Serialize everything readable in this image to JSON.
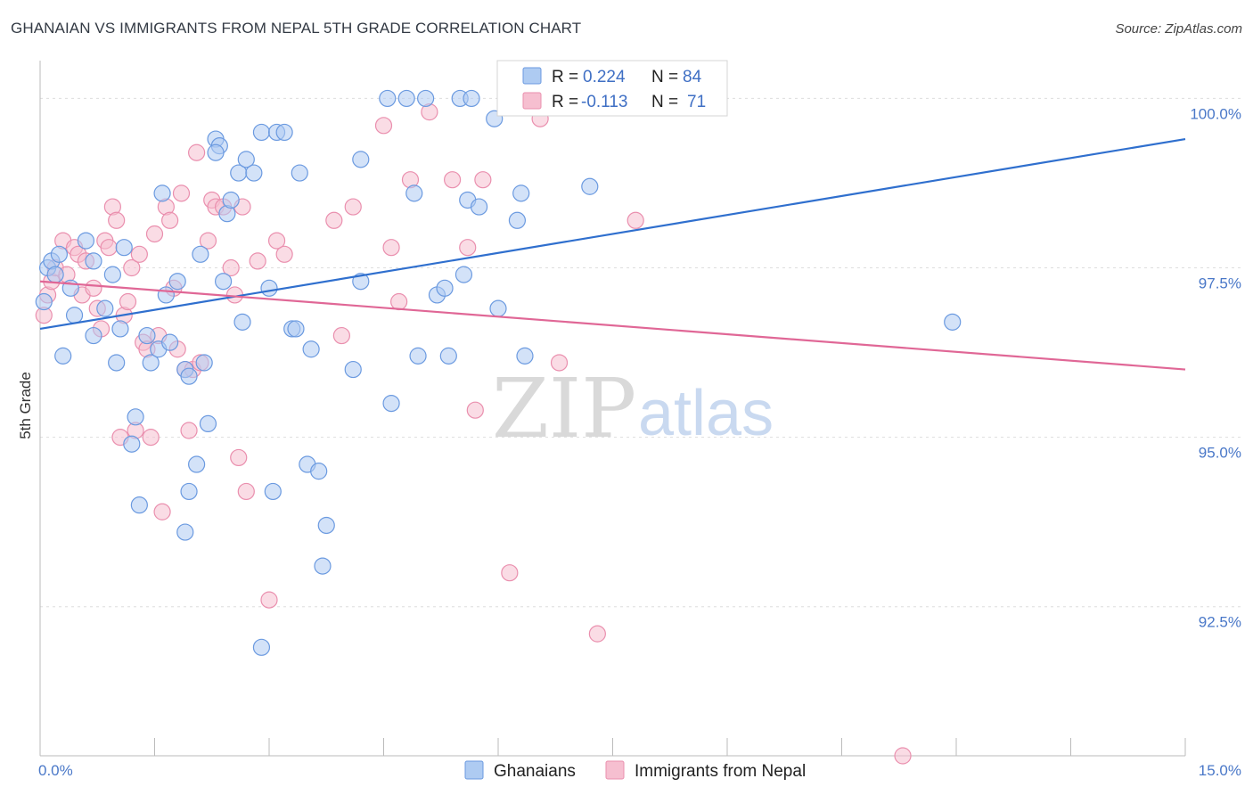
{
  "title": "GHANAIAN VS IMMIGRANTS FROM NEPAL 5TH GRADE CORRELATION CHART",
  "source": "Source: ZipAtlas.com",
  "watermark": {
    "zip": "ZIP",
    "atlas": "atlas"
  },
  "colors": {
    "blue_fill": "#aecbf2",
    "blue_stroke": "#6b9ae0",
    "blue_line": "#2f6fce",
    "pink_fill": "#f6bfd0",
    "pink_stroke": "#ea8fae",
    "pink_line": "#e06796",
    "grid": "#dddddd",
    "tick_text": "#4a78c8"
  },
  "legend": {
    "rows": [
      {
        "r_label": "R =",
        "r_value": "0.224",
        "n_label": "N =",
        "n_value": "84"
      },
      {
        "r_label": "R =",
        "r_value": "-0.113",
        "n_label": "N =",
        "n_value": "71"
      }
    ]
  },
  "chart_data": {
    "type": "scatter",
    "title": "GHANAIAN VS IMMIGRANTS FROM NEPAL 5TH GRADE CORRELATION CHART",
    "xlabel": "",
    "ylabel": "5th Grade",
    "xlim": [
      0,
      15
    ],
    "ylim": [
      90.3,
      100.4
    ],
    "x_tick_labels": [
      "0.0%",
      "15.0%"
    ],
    "y_ticks": [
      92.5,
      95.0,
      97.5,
      100.0
    ],
    "y_tick_labels": [
      "92.5%",
      "95.0%",
      "97.5%",
      "100.0%"
    ],
    "grid": "horizontal dashed",
    "legend_position": "top-center",
    "series": [
      {
        "name": "Ghanaians",
        "trend": [
          [
            0,
            96.6
          ],
          [
            15,
            99.4
          ]
        ],
        "points": [
          [
            0.05,
            97.0
          ],
          [
            0.1,
            97.5
          ],
          [
            0.15,
            97.6
          ],
          [
            0.2,
            97.4
          ],
          [
            0.3,
            96.2
          ],
          [
            0.4,
            97.2
          ],
          [
            0.45,
            96.8
          ],
          [
            0.6,
            97.9
          ],
          [
            0.7,
            97.6
          ],
          [
            0.7,
            96.5
          ],
          [
            0.85,
            96.9
          ],
          [
            0.95,
            97.4
          ],
          [
            1.0,
            96.1
          ],
          [
            1.05,
            96.6
          ],
          [
            1.1,
            97.8
          ],
          [
            1.2,
            94.9
          ],
          [
            1.25,
            95.3
          ],
          [
            1.3,
            94.0
          ],
          [
            1.4,
            96.5
          ],
          [
            1.45,
            96.1
          ],
          [
            1.55,
            96.3
          ],
          [
            1.6,
            98.6
          ],
          [
            1.65,
            97.1
          ],
          [
            1.7,
            96.4
          ],
          [
            1.8,
            97.3
          ],
          [
            1.9,
            96.0
          ],
          [
            1.95,
            95.9
          ],
          [
            1.9,
            93.6
          ],
          [
            1.95,
            94.2
          ],
          [
            2.05,
            94.6
          ],
          [
            2.1,
            97.7
          ],
          [
            2.15,
            96.1
          ],
          [
            2.2,
            95.2
          ],
          [
            2.3,
            99.4
          ],
          [
            2.35,
            99.3
          ],
          [
            2.3,
            99.2
          ],
          [
            2.4,
            97.3
          ],
          [
            2.45,
            98.3
          ],
          [
            2.5,
            98.5
          ],
          [
            2.6,
            98.9
          ],
          [
            2.65,
            96.7
          ],
          [
            2.7,
            99.1
          ],
          [
            2.8,
            98.9
          ],
          [
            2.9,
            91.9
          ],
          [
            2.9,
            99.5
          ],
          [
            3.0,
            97.2
          ],
          [
            3.05,
            94.2
          ],
          [
            3.1,
            99.5
          ],
          [
            3.2,
            99.5
          ],
          [
            3.3,
            96.6
          ],
          [
            3.35,
            96.6
          ],
          [
            3.4,
            98.9
          ],
          [
            3.5,
            94.6
          ],
          [
            3.55,
            96.3
          ],
          [
            3.65,
            94.5
          ],
          [
            3.7,
            93.1
          ],
          [
            3.75,
            93.7
          ],
          [
            4.1,
            96.0
          ],
          [
            4.2,
            97.3
          ],
          [
            4.2,
            99.1
          ],
          [
            4.55,
            100.0
          ],
          [
            4.6,
            95.5
          ],
          [
            4.8,
            100.0
          ],
          [
            4.9,
            98.6
          ],
          [
            4.95,
            96.2
          ],
          [
            5.05,
            100.0
          ],
          [
            5.2,
            97.1
          ],
          [
            5.3,
            97.2
          ],
          [
            5.35,
            96.2
          ],
          [
            5.5,
            100.0
          ],
          [
            5.55,
            97.4
          ],
          [
            5.65,
            100.0
          ],
          [
            5.6,
            98.5
          ],
          [
            5.75,
            98.4
          ],
          [
            5.95,
            99.7
          ],
          [
            6.0,
            96.9
          ],
          [
            6.25,
            98.2
          ],
          [
            6.3,
            98.6
          ],
          [
            6.35,
            96.2
          ],
          [
            7.2,
            98.7
          ],
          [
            8.0,
            100.0
          ],
          [
            8.1,
            100.0
          ],
          [
            11.95,
            96.7
          ],
          [
            0.25,
            97.7
          ]
        ]
      },
      {
        "name": "Immigrants from Nepal",
        "trend": [
          [
            0,
            97.3
          ],
          [
            15,
            96.0
          ]
        ],
        "points": [
          [
            0.05,
            96.8
          ],
          [
            0.1,
            97.1
          ],
          [
            0.15,
            97.3
          ],
          [
            0.2,
            97.5
          ],
          [
            0.3,
            97.9
          ],
          [
            0.35,
            97.4
          ],
          [
            0.45,
            97.8
          ],
          [
            0.5,
            97.7
          ],
          [
            0.55,
            97.1
          ],
          [
            0.6,
            97.6
          ],
          [
            0.7,
            97.2
          ],
          [
            0.75,
            96.9
          ],
          [
            0.8,
            96.6
          ],
          [
            0.85,
            97.9
          ],
          [
            0.9,
            97.8
          ],
          [
            0.95,
            98.4
          ],
          [
            1.0,
            98.2
          ],
          [
            1.05,
            95.0
          ],
          [
            1.1,
            96.8
          ],
          [
            1.15,
            97.0
          ],
          [
            1.2,
            97.5
          ],
          [
            1.25,
            95.1
          ],
          [
            1.3,
            97.7
          ],
          [
            1.35,
            96.4
          ],
          [
            1.4,
            96.3
          ],
          [
            1.45,
            95.0
          ],
          [
            1.5,
            98.0
          ],
          [
            1.55,
            96.5
          ],
          [
            1.6,
            93.9
          ],
          [
            1.65,
            98.4
          ],
          [
            1.7,
            98.2
          ],
          [
            1.75,
            97.2
          ],
          [
            1.8,
            96.3
          ],
          [
            1.85,
            98.6
          ],
          [
            1.9,
            96.0
          ],
          [
            1.95,
            95.1
          ],
          [
            2.0,
            96.0
          ],
          [
            2.05,
            99.2
          ],
          [
            2.1,
            96.1
          ],
          [
            2.2,
            97.9
          ],
          [
            2.25,
            98.5
          ],
          [
            2.3,
            98.4
          ],
          [
            2.4,
            98.4
          ],
          [
            2.5,
            97.5
          ],
          [
            2.55,
            97.1
          ],
          [
            2.6,
            94.7
          ],
          [
            2.65,
            98.4
          ],
          [
            2.7,
            94.2
          ],
          [
            2.85,
            97.6
          ],
          [
            3.0,
            92.6
          ],
          [
            3.1,
            97.9
          ],
          [
            3.2,
            97.7
          ],
          [
            3.85,
            98.2
          ],
          [
            3.95,
            96.5
          ],
          [
            4.1,
            98.4
          ],
          [
            4.5,
            99.6
          ],
          [
            4.6,
            97.8
          ],
          [
            4.7,
            97.0
          ],
          [
            4.85,
            98.8
          ],
          [
            5.1,
            99.8
          ],
          [
            5.4,
            98.8
          ],
          [
            5.6,
            97.8
          ],
          [
            5.7,
            95.4
          ],
          [
            5.8,
            98.8
          ],
          [
            6.15,
            93.0
          ],
          [
            6.45,
            100.0
          ],
          [
            6.55,
            99.7
          ],
          [
            6.8,
            96.1
          ],
          [
            7.1,
            100.0
          ],
          [
            7.3,
            92.1
          ],
          [
            7.8,
            98.2
          ],
          [
            11.3,
            90.3
          ]
        ]
      }
    ]
  }
}
